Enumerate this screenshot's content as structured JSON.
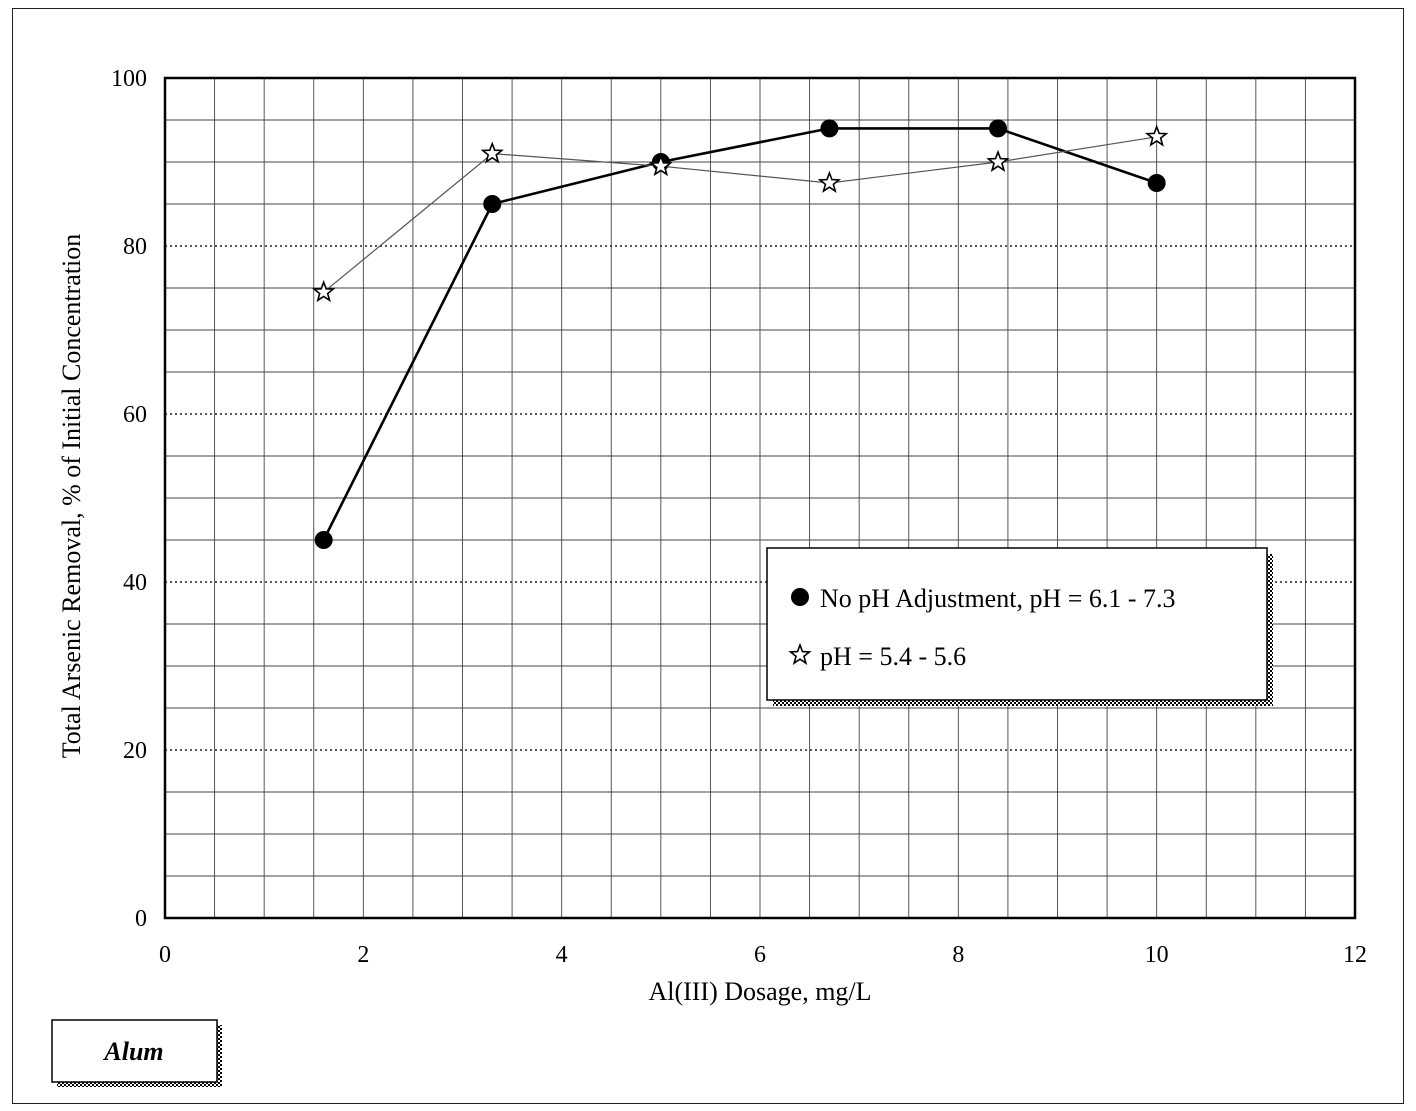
{
  "chart_data": {
    "type": "line",
    "xlabel": "Al(III) Dosage, mg/L",
    "ylabel": "Total Arsenic Removal, % of Initial Concentration",
    "xlim": [
      0,
      12
    ],
    "ylim": [
      0,
      100
    ],
    "x_ticks": [
      0,
      2,
      4,
      6,
      8,
      10,
      12
    ],
    "y_ticks": [
      0,
      20,
      40,
      60,
      80,
      100
    ],
    "grid": true,
    "legend_position": "center-right",
    "series": [
      {
        "name": "No pH Adjustment, pH = 6.1 - 7.3",
        "marker": "circle",
        "line_style": "solid",
        "color": "#000000",
        "points": [
          {
            "x": 1.6,
            "y": 45
          },
          {
            "x": 3.3,
            "y": 85
          },
          {
            "x": 5.0,
            "y": 90
          },
          {
            "x": 6.7,
            "y": 94
          },
          {
            "x": 8.4,
            "y": 94
          },
          {
            "x": 10.0,
            "y": 87.5
          }
        ]
      },
      {
        "name": "pH = 5.4 - 5.6",
        "marker": "star",
        "line_style": "thin",
        "color": "#555555",
        "points": [
          {
            "x": 1.6,
            "y": 74.5
          },
          {
            "x": 3.3,
            "y": 91
          },
          {
            "x": 5.0,
            "y": 89.5
          },
          {
            "x": 6.7,
            "y": 87.5
          },
          {
            "x": 8.4,
            "y": 90
          },
          {
            "x": 10.0,
            "y": 93
          }
        ]
      }
    ]
  },
  "label_box": {
    "text": "Alum"
  }
}
